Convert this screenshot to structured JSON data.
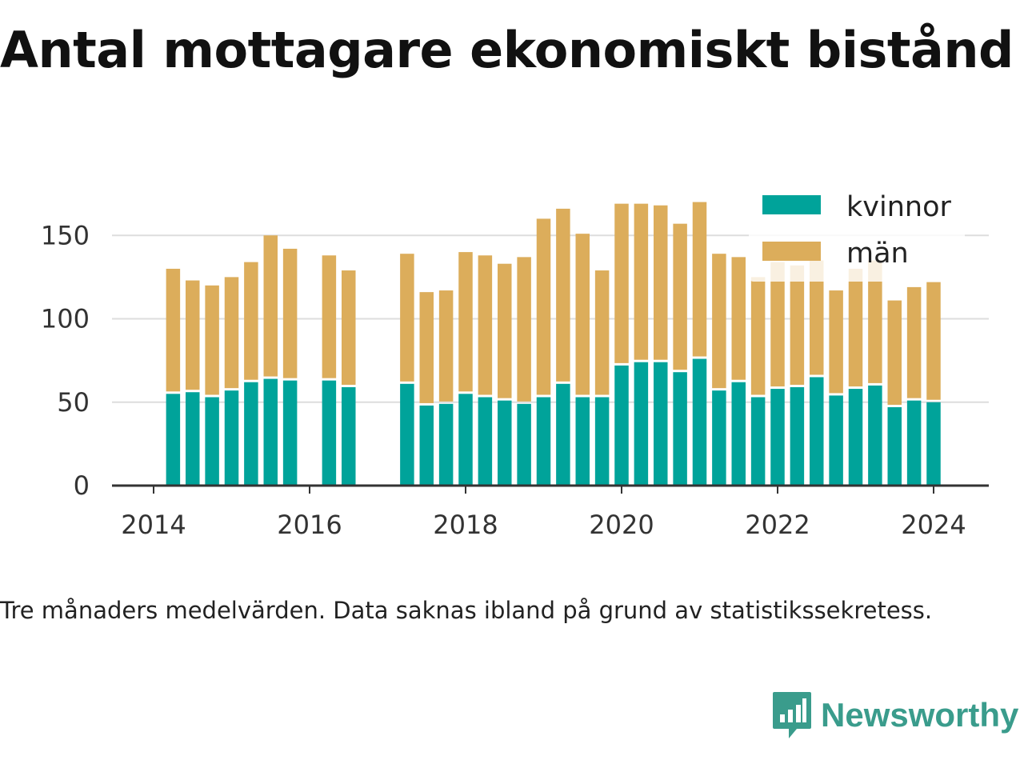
{
  "title": "Antal mottagare ekonomiskt bistånd",
  "caption": "Tre månaders medelvärden. Data saknas ibland på grund av statistikssekretess.",
  "brand": {
    "name": "Newsworthy",
    "icon": "newsworthy-logo-icon"
  },
  "colors": {
    "kvinnor": "#00a39a",
    "man": "#dcad5b",
    "grid": "#dddddd",
    "axis": "#333333"
  },
  "chart_data": {
    "type": "bar",
    "stacked": true,
    "x_ticks": [
      "2014",
      "2016",
      "2018",
      "2020",
      "2022",
      "2024"
    ],
    "y_ticks": [
      "0",
      "50",
      "100",
      "150"
    ],
    "ylim": [
      0,
      175
    ],
    "grid": true,
    "legend_position": "top-right",
    "series": [
      {
        "name": "kvinnor",
        "color": "#00a39a",
        "values": [
          55,
          56,
          53,
          57,
          62,
          64,
          63,
          null,
          63,
          59,
          null,
          null,
          61,
          48,
          49,
          55,
          53,
          51,
          49,
          53,
          61,
          53,
          53,
          72,
          74,
          74,
          68,
          76,
          57,
          62,
          53,
          58,
          59,
          65,
          54,
          58,
          60,
          47,
          51,
          50
        ]
      },
      {
        "name": "män",
        "color": "#dcad5b",
        "values": [
          75,
          67,
          67,
          68,
          72,
          86,
          79,
          null,
          75,
          70,
          null,
          null,
          78,
          68,
          68,
          85,
          85,
          82,
          88,
          107,
          105,
          98,
          76,
          97,
          95,
          94,
          89,
          94,
          82,
          75,
          72,
          76,
          73,
          70,
          63,
          72,
          75,
          64,
          68,
          72
        ]
      }
    ],
    "periods": [
      "2014-Q2",
      "2014-Q3",
      "2014-Q4",
      "2015-Q1",
      "2015-Q2",
      "2015-Q3",
      "2015-Q4",
      "2016-Q1",
      "2016-Q2",
      "2016-Q3",
      "2016-Q4",
      "2017-Q1",
      "2017-Q2",
      "2017-Q3",
      "2017-Q4",
      "2018-Q1",
      "2018-Q2",
      "2018-Q3",
      "2018-Q4",
      "2019-Q1",
      "2019-Q2",
      "2019-Q3",
      "2019-Q4",
      "2020-Q1",
      "2020-Q2",
      "2020-Q3",
      "2020-Q4",
      "2021-Q1",
      "2021-Q2",
      "2021-Q3",
      "2021-Q4",
      "2022-Q1",
      "2022-Q2",
      "2022-Q3",
      "2022-Q4",
      "2023-Q1",
      "2023-Q2",
      "2023-Q3",
      "2023-Q4",
      "2024-Q1"
    ]
  }
}
